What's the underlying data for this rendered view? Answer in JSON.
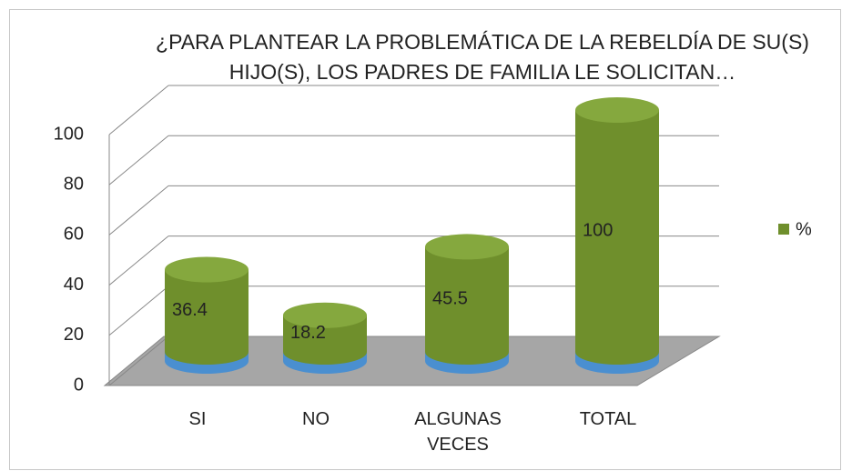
{
  "chart_data": {
    "type": "bar3d",
    "title": "¿PARA PLANTEAR LA PROBLEMÁTICA DE LA REBELDÍA DE SU(S) HIJO(S), LOS PADRES DE FAMILIA LE SOLICITAN…",
    "categories": [
      "SI",
      "NO",
      "ALGUNAS VECES",
      "TOTAL"
    ],
    "series": [
      {
        "name": "%",
        "color": "#6f8f2c",
        "values": [
          36.4,
          18.2,
          45.5,
          100
        ]
      }
    ],
    "ylim": [
      0,
      100
    ],
    "yticks": [
      0,
      20,
      40,
      60,
      80,
      100
    ],
    "grid": true,
    "legend": "right"
  }
}
